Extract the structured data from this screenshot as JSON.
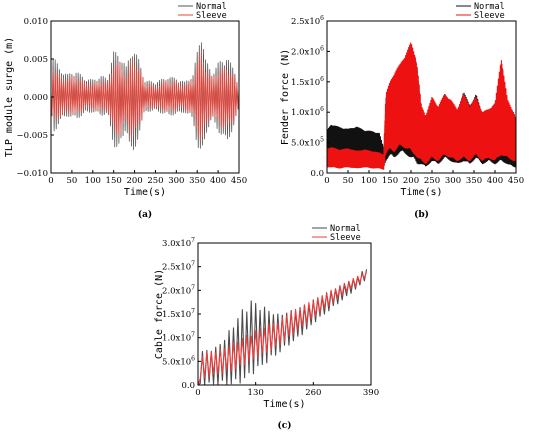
{
  "chart_data": [
    {
      "id": "a",
      "type": "line",
      "panel_label": "(a)",
      "xlabel": "Time(s)",
      "ylabel": "TLP module surge (m)",
      "xlim": [
        0,
        450
      ],
      "ylim": [
        -0.01,
        0.01
      ],
      "xticks": [
        0,
        50,
        100,
        150,
        200,
        250,
        300,
        350,
        400,
        450
      ],
      "xtick_labels": [
        "0",
        "50",
        "100",
        "150",
        "200",
        "250",
        "300",
        "350",
        "400",
        "450"
      ],
      "yticks": [
        -0.01,
        -0.005,
        0.0,
        0.005,
        0.01
      ],
      "ytick_labels": [
        "−0.010",
        "−0.005",
        "0.000",
        "0.005",
        "0.010"
      ],
      "legend_position": "top-right",
      "series": [
        {
          "name": "Normal",
          "color": "#555555",
          "envelope": {
            "t": [
              0,
              5,
              10,
              20,
              40,
              60,
              80,
              100,
              120,
              135,
              150,
              165,
              180,
              195,
              210,
              225,
              250,
              280,
              300,
              320,
              340,
              350,
              360,
              370,
              385,
              400,
              420,
              440,
              450
            ],
            "upper": [
              0.001,
              0.0055,
              0.005,
              0.0038,
              0.003,
              0.0035,
              0.0025,
              0.0023,
              0.0028,
              0.0025,
              0.006,
              0.0058,
              0.004,
              0.0068,
              0.005,
              0.0022,
              0.002,
              0.0027,
              0.0025,
              0.002,
              0.003,
              0.006,
              0.009,
              0.005,
              0.0032,
              0.0045,
              0.0055,
              0.0035,
              0.0012
            ],
            "lower": [
              -0.001,
              -0.005,
              -0.0045,
              -0.0033,
              -0.0025,
              -0.003,
              -0.0022,
              -0.002,
              -0.0025,
              -0.0022,
              -0.0065,
              -0.007,
              -0.004,
              -0.0085,
              -0.005,
              -0.002,
              -0.0018,
              -0.0025,
              -0.0023,
              -0.002,
              -0.003,
              -0.0065,
              -0.0085,
              -0.005,
              -0.003,
              -0.0045,
              -0.0062,
              -0.0037,
              -0.0012
            ]
          }
        },
        {
          "name": "Sleeve",
          "color": "#e8443a",
          "envelope": {
            "t": [
              0,
              5,
              10,
              20,
              40,
              60,
              80,
              100,
              120,
              135,
              150,
              165,
              180,
              195,
              210,
              225,
              250,
              280,
              300,
              320,
              340,
              350,
              360,
              370,
              385,
              400,
              420,
              440,
              450
            ],
            "upper": [
              0.0008,
              0.004,
              0.0038,
              0.003,
              0.0024,
              0.0028,
              0.002,
              0.0018,
              0.0022,
              0.002,
              0.0045,
              0.0045,
              0.003,
              0.0052,
              0.004,
              0.0018,
              0.0016,
              0.0022,
              0.002,
              0.0016,
              0.0024,
              0.0045,
              0.0062,
              0.004,
              0.0025,
              0.0035,
              0.004,
              0.0028,
              0.001
            ],
            "lower": [
              -0.0008,
              -0.0038,
              -0.0035,
              -0.0027,
              -0.002,
              -0.0024,
              -0.0018,
              -0.0016,
              -0.002,
              -0.0018,
              -0.005,
              -0.0052,
              -0.003,
              -0.006,
              -0.004,
              -0.0016,
              -0.0015,
              -0.002,
              -0.0018,
              -0.0016,
              -0.0024,
              -0.005,
              -0.006,
              -0.004,
              -0.0024,
              -0.0035,
              -0.0045,
              -0.003,
              -0.001
            ]
          }
        }
      ]
    },
    {
      "id": "b",
      "type": "area",
      "panel_label": "(b)",
      "xlabel": "Time(s)",
      "ylabel": "Fender force (N)",
      "xlim": [
        0,
        450
      ],
      "ylim": [
        0,
        2500000
      ],
      "xticks": [
        0,
        50,
        100,
        150,
        200,
        250,
        300,
        350,
        400,
        450
      ],
      "xtick_labels": [
        "0",
        "50",
        "100",
        "150",
        "200",
        "250",
        "300",
        "350",
        "400",
        "450"
      ],
      "yticks": [
        0,
        500000,
        1000000,
        1500000,
        2000000,
        2500000
      ],
      "ytick_labels": [
        {
          "base": "0.0",
          "exp": ""
        },
        {
          "base": "5.0x10",
          "exp": "5"
        },
        {
          "base": "1.0x10",
          "exp": "6"
        },
        {
          "base": "1.5x10",
          "exp": "6"
        },
        {
          "base": "2.0x10",
          "exp": "6"
        },
        {
          "base": "2.5x10",
          "exp": "6"
        }
      ],
      "legend_position": "top-right",
      "series": [
        {
          "name": "Normal",
          "color": "#111111",
          "envelope": {
            "t": [
              0,
              10,
              30,
              50,
              70,
              90,
              110,
              125,
              135,
              140,
              150,
              160,
              175,
              190,
              200,
              210,
              215,
              225,
              235,
              250,
              265,
              280,
              295,
              310,
              325,
              340,
              355,
              370,
              385,
              400,
              415,
              430,
              445,
              450
            ],
            "upper": [
              700000,
              800000,
              750000,
              720000,
              760000,
              700000,
              680000,
              650000,
              400000,
              1100000,
              1300000,
              1500000,
              1700000,
              1850000,
              2050000,
              1900000,
              1700000,
              1000000,
              900000,
              1200000,
              1050000,
              1300000,
              1150000,
              1000000,
              1350000,
              1100000,
              1300000,
              950000,
              1000000,
              1100000,
              1250000,
              800000,
              700000,
              650000
            ],
            "lower": [
              200000,
              150000,
              100000,
              200000,
              150000,
              100000,
              120000,
              150000,
              100000,
              200000,
              300000,
              250000,
              350000,
              300000,
              250000,
              200000,
              150000,
              150000,
              100000,
              200000,
              150000,
              250000,
              200000,
              150000,
              200000,
              150000,
              250000,
              150000,
              200000,
              150000,
              200000,
              150000,
              100000,
              100000
            ]
          }
        },
        {
          "name": "Sleeve",
          "color": "#ee1111",
          "envelope": {
            "t": [
              0,
              10,
              30,
              50,
              70,
              90,
              110,
              125,
              135,
              140,
              150,
              160,
              175,
              190,
              200,
              210,
              215,
              225,
              235,
              250,
              265,
              280,
              295,
              310,
              325,
              340,
              355,
              370,
              385,
              400,
              415,
              430,
              445,
              450
            ],
            "upper": [
              400000,
              420000,
              380000,
              400000,
              360000,
              380000,
              350000,
              330000,
              300000,
              1300000,
              1500000,
              1650000,
              1800000,
              2000000,
              2150000,
              1950000,
              1750000,
              1100000,
              950000,
              1250000,
              1100000,
              1300000,
              1200000,
              1050000,
              1300000,
              1100000,
              1250000,
              1000000,
              1050000,
              1150000,
              1900000,
              1200000,
              1000000,
              900000
            ],
            "lower": [
              100000,
              100000,
              80000,
              100000,
              80000,
              100000,
              80000,
              80000,
              60000,
              300000,
              400000,
              350000,
              450000,
              400000,
              350000,
              300000,
              250000,
              200000,
              150000,
              250000,
              200000,
              300000,
              250000,
              200000,
              250000,
              200000,
              300000,
              200000,
              250000,
              200000,
              300000,
              250000,
              200000,
              200000
            ]
          }
        }
      ]
    },
    {
      "id": "c",
      "type": "area",
      "panel_label": "(c)",
      "xlabel": "Time(s)",
      "ylabel": "Cable force (N)",
      "xlim": [
        0,
        390
      ],
      "ylim": [
        0,
        30000000
      ],
      "xticks": [
        0,
        130,
        260,
        390
      ],
      "xtick_labels": [
        "0",
        "130",
        "260",
        "390"
      ],
      "yticks": [
        0,
        5000000,
        10000000,
        15000000,
        20000000,
        25000000,
        30000000
      ],
      "ytick_labels": [
        {
          "base": "0.0",
          "exp": ""
        },
        {
          "base": "5.0x10",
          "exp": "6"
        },
        {
          "base": "1.0x10",
          "exp": "7"
        },
        {
          "base": "1.5x10",
          "exp": "7"
        },
        {
          "base": "2.0x10",
          "exp": "7"
        },
        {
          "base": "2.5x10",
          "exp": "7"
        },
        {
          "base": "3.0x10",
          "exp": "7"
        }
      ],
      "legend_position": "top-right",
      "series": [
        {
          "name": "Normal",
          "color": "#4a4a4a",
          "envelope": {
            "t": [
              0,
              2,
              5,
              20,
              40,
              60,
              80,
              100,
              120,
              140,
              160,
              180,
              200,
              220,
              240,
              260,
              280,
              300,
              320,
              340,
              360,
              375,
              380
            ],
            "upper": [
              0,
              6000000,
              7000000,
              7500000,
              8000000,
              10000000,
              13000000,
              16000000,
              18000000,
              17000000,
              16000000,
              15000000,
              15500000,
              16000000,
              17000000,
              18000000,
              19000000,
              20000000,
              21000000,
              22000000,
              23000000,
              24500000,
              24500000
            ],
            "lower": [
              0,
              0,
              0,
              0,
              0,
              0,
              0,
              500000,
              2000000,
              3500000,
              5000000,
              6500000,
              8000000,
              9500000,
              11000000,
              13000000,
              14500000,
              16000000,
              17500000,
              19000000,
              20500000,
              22000000,
              22000000
            ]
          }
        },
        {
          "name": "Sleeve",
          "color": "#ef3b3b",
          "envelope": {
            "t": [
              0,
              2,
              5,
              20,
              40,
              60,
              80,
              100,
              120,
              140,
              160,
              180,
              200,
              220,
              240,
              260,
              280,
              300,
              320,
              340,
              360,
              375,
              380
            ],
            "upper": [
              0,
              6000000,
              6500000,
              7000000,
              7200000,
              8000000,
              9000000,
              10000000,
              11000000,
              12000000,
              13000000,
              13500000,
              15000000,
              16000000,
              17000000,
              18000000,
              19000000,
              20000000,
              21000000,
              22000000,
              23000000,
              24000000,
              24000000
            ],
            "lower": [
              0,
              500000,
              1000000,
              1500000,
              2000000,
              2500000,
              3000000,
              4000000,
              5000000,
              6000000,
              7000000,
              8000000,
              9500000,
              11000000,
              12500000,
              14000000,
              15500000,
              17000000,
              18500000,
              20000000,
              21000000,
              22500000,
              22500000
            ]
          }
        }
      ]
    }
  ]
}
